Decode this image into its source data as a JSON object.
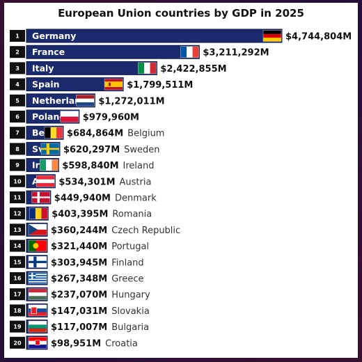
{
  "title": "European Union countries by GDP in 2025",
  "colors": {
    "bar": "#1a2a6c",
    "bar_edge": "#0e1a4a",
    "rank_bg": "#111111"
  },
  "chart_data": {
    "type": "bar",
    "orientation": "horizontal",
    "title": "European Union countries by GDP in 2025",
    "unit": "M",
    "categories": [
      "Germany",
      "France",
      "Italy",
      "Spain",
      "Netherlands",
      "Poland",
      "Belgium",
      "Sweden",
      "Ireland",
      "Austria",
      "Denmark",
      "Romania",
      "Czech Republic",
      "Portugal",
      "Finland",
      "Greece",
      "Hungary",
      "Slovakia",
      "Bulgaria",
      "Croatia"
    ],
    "values": [
      4744804,
      3211292,
      2422855,
      1799511,
      1272011,
      979960,
      684864,
      620297,
      598840,
      534301,
      449940,
      403395,
      360244,
      321440,
      303945,
      267348,
      237070,
      147031,
      117007,
      98951
    ],
    "value_labels": [
      "$4,744,804M",
      "$3,211,292M",
      "$2,422,855M",
      "$1,799,511M",
      "$1,272,011M",
      "$979,960M",
      "$684,864M",
      "$620,297M",
      "$598,840M",
      "$534,301M",
      "$449,940M",
      "$403,395M",
      "$360,244M",
      "$321,440M",
      "$303,945M",
      "$267,348M",
      "$237,070M",
      "$147,031M",
      "$117,007M",
      "$98,951M"
    ],
    "in_bar_labels": [
      "Germany",
      "France",
      "Italy",
      "Spain",
      "Netherlar",
      "Polanc",
      "Bel",
      "Sv",
      "Ir",
      "A",
      "",
      "",
      "",
      "",
      "",
      "",
      "",
      "",
      "",
      ""
    ],
    "outside_labels": [
      "",
      "",
      "",
      "",
      "",
      "",
      "Belgium",
      "Sweden",
      "Ireland",
      "Austria",
      "Denmark",
      "Romania",
      "Czech Republic",
      "Portugal",
      "Finland",
      "Greece",
      "Hungary",
      "Slovakia",
      "Bulgaria",
      "Croatia"
    ],
    "ranks": [
      "1",
      "2",
      "3",
      "4",
      "5",
      "6",
      "7",
      "8",
      "9",
      "10",
      "11",
      "12",
      "13",
      "14",
      "15",
      "16",
      "17",
      "18",
      "19",
      "20"
    ],
    "flags": [
      "germany-flag",
      "france-flag",
      "italy-flag",
      "spain-flag",
      "netherlands-flag",
      "poland-flag",
      "belgium-flag",
      "sweden-flag",
      "ireland-flag",
      "austria-flag",
      "denmark-flag",
      "romania-flag",
      "czech-republic-flag",
      "portugal-flag",
      "finland-flag",
      "greece-flag",
      "hungary-flag",
      "slovakia-flag",
      "bulgaria-flag",
      "croatia-flag"
    ],
    "xlim": [
      0,
      4744804
    ],
    "grid": false,
    "legend": "none"
  }
}
